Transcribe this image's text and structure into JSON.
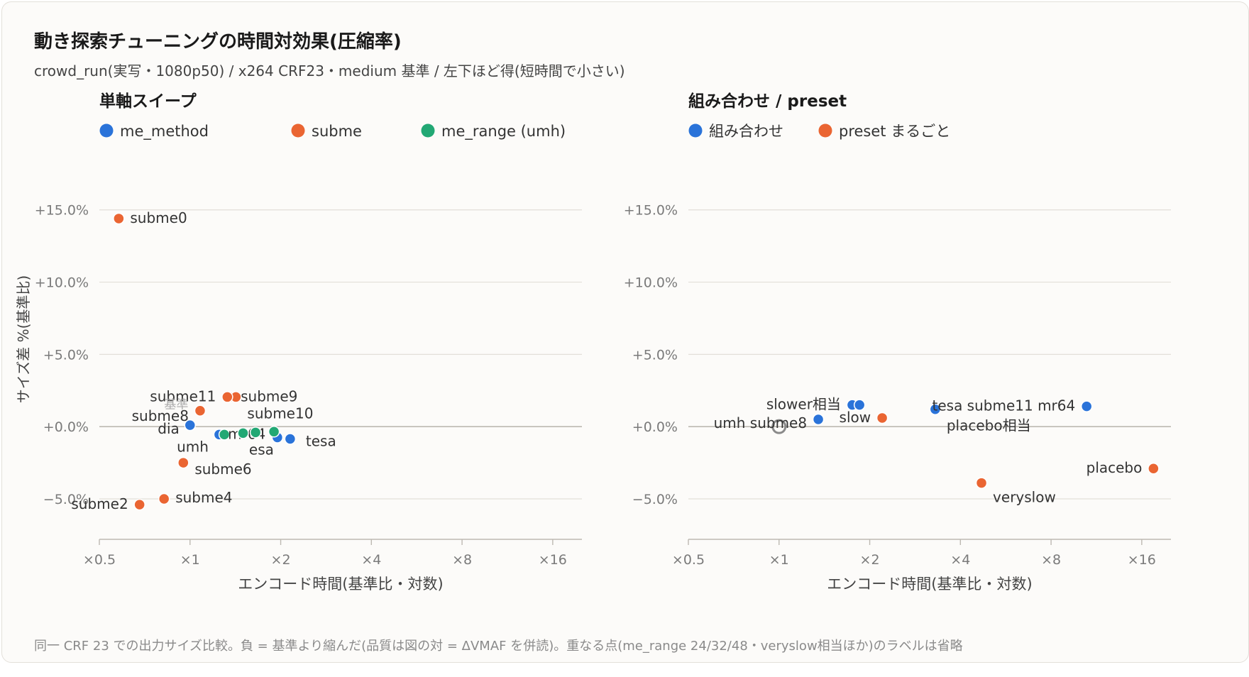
{
  "header": {
    "title": "動き探索チューニングの時間対効果(圧縮率)",
    "subtitle": "crowd_run(実写・1080p50) / x264 CRF23・medium 基準 / 左下ほど得(短時間で小さい)"
  },
  "footnote": "同一 CRF 23 での出力サイズ比較。負 = 基準より縮んだ(品質は図の対 = ΔVMAF を併読)。重なる点(me_range 24/32/48・veryslow相当ほか)のラベルは省略",
  "colors": {
    "blue": "#2a73d9",
    "orange": "#ea6532",
    "green": "#22a874",
    "grid": "#e2dfd9",
    "axis": "#bdb9b2",
    "zero": "#bdb9b2",
    "tick": "#7a7a7a"
  },
  "chart_data": [
    {
      "type": "scatter",
      "title": "単軸スイープ",
      "xlabel": "エンコード時間(基準比・対数)",
      "ylabel": "サイズ差 %(基準比)",
      "x_scale": "log2",
      "xlim": [
        0.5,
        20
      ],
      "ylim": [
        -7.8,
        17
      ],
      "x_ticks": [
        0.5,
        1,
        2,
        4,
        8,
        16
      ],
      "x_tick_labels": [
        "×0.5",
        "×1",
        "×2",
        "×4",
        "×8",
        "×16"
      ],
      "y_ticks": [
        15,
        10,
        5,
        0,
        -5
      ],
      "y_tick_labels": [
        "+15.0%",
        "+10.0%",
        "+5.0%",
        "+0.0%",
        "−5.0%"
      ],
      "legend": "top-left",
      "baseline_label": "基準",
      "series": [
        {
          "name": "me_method",
          "color": "#2a73d9",
          "points": [
            {
              "x": 1.0,
              "y": 0.1,
              "label": "dia"
            },
            {
              "x": 1.25,
              "y": -0.55,
              "label": "umh"
            },
            {
              "x": 1.95,
              "y": -0.75,
              "label": "esa"
            },
            {
              "x": 2.15,
              "y": -0.85,
              "label": "tesa"
            }
          ]
        },
        {
          "name": "subme",
          "color": "#ea6532",
          "points": [
            {
              "x": 0.58,
              "y": 14.4,
              "label": "subme0"
            },
            {
              "x": 0.68,
              "y": -5.4,
              "label": "subme2"
            },
            {
              "x": 0.82,
              "y": -5.0,
              "label": "subme4"
            },
            {
              "x": 0.95,
              "y": -2.5,
              "label": "subme6"
            },
            {
              "x": 1.08,
              "y": 1.1,
              "label": "subme8"
            },
            {
              "x": 1.35,
              "y": 2.05,
              "label": "subme9"
            },
            {
              "x": 1.42,
              "y": 2.05,
              "label": "subme10"
            },
            {
              "x": 1.33,
              "y": 2.05,
              "label": "subme11"
            }
          ]
        },
        {
          "name": "me_range (umh)",
          "color": "#22a874",
          "points": [
            {
              "x": 1.3,
              "y": -0.55,
              "label": "mr64"
            },
            {
              "x": 1.5,
              "y": -0.45,
              "label": ""
            },
            {
              "x": 1.65,
              "y": -0.4,
              "label": ""
            },
            {
              "x": 1.9,
              "y": -0.35,
              "label": ""
            }
          ]
        }
      ]
    },
    {
      "type": "scatter",
      "title": "組み合わせ / preset",
      "xlabel": "エンコード時間(基準比・対数)",
      "ylabel": "",
      "x_scale": "log2",
      "xlim": [
        0.5,
        20
      ],
      "ylim": [
        -7.8,
        17
      ],
      "x_ticks": [
        0.5,
        1,
        2,
        4,
        8,
        16
      ],
      "x_tick_labels": [
        "×0.5",
        "×1",
        "×2",
        "×4",
        "×8",
        "×16"
      ],
      "y_ticks": [
        15,
        10,
        5,
        0,
        -5
      ],
      "y_tick_labels": [
        "+15.0%",
        "+10.0%",
        "+5.0%",
        "+0.0%",
        "−5.0%"
      ],
      "legend": "top-left",
      "baseline_point": {
        "x": 1.0,
        "y": 0.0
      },
      "series": [
        {
          "name": "組み合わせ",
          "color": "#2a73d9",
          "points": [
            {
              "x": 1.35,
              "y": 0.5,
              "label": "umh subme8"
            },
            {
              "x": 1.75,
              "y": 1.5,
              "label": "slower相当"
            },
            {
              "x": 1.85,
              "y": 1.5,
              "label": ""
            },
            {
              "x": 3.3,
              "y": 1.2,
              "label": "placebo相当"
            },
            {
              "x": 10.5,
              "y": 1.4,
              "label": "tesa subme11 mr64"
            }
          ]
        },
        {
          "name": "preset まるごと",
          "color": "#ea6532",
          "points": [
            {
              "x": 2.2,
              "y": 0.6,
              "label": "slow"
            },
            {
              "x": 4.7,
              "y": -3.9,
              "label": "veryslow"
            },
            {
              "x": 17.5,
              "y": -2.9,
              "label": "placebo"
            }
          ]
        }
      ]
    }
  ]
}
